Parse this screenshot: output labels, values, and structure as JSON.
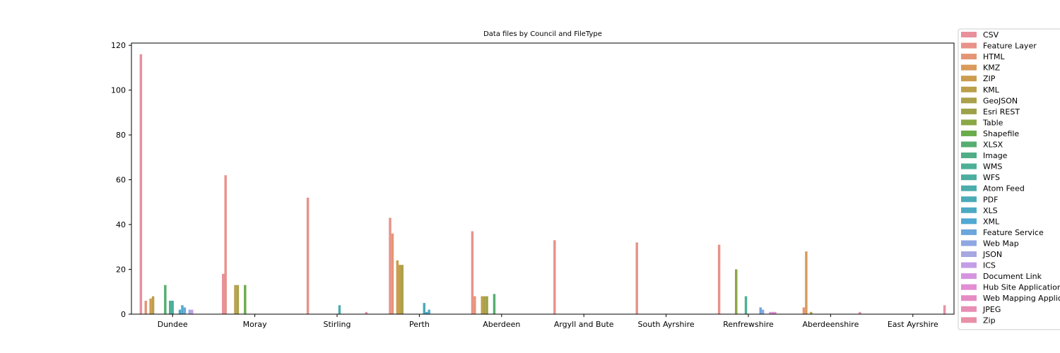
{
  "chart_data": {
    "type": "bar",
    "title": "Data files by Council and FileType",
    "xlabel": "",
    "ylabel": "",
    "ylim": [
      0,
      121
    ],
    "yticks": [
      0,
      20,
      40,
      60,
      80,
      100,
      120
    ],
    "legend_position": "right (outside plot, clipped)",
    "categories": [
      "Dundee",
      "Moray",
      "Stirling",
      "Perth",
      "Aberdeen",
      "Argyll and Bute",
      "South Ayrshire",
      "Renfrewshire",
      "Aberdeenshire",
      "East Ayrshire"
    ],
    "series": [
      {
        "name": "CSV",
        "color": "#e8909c",
        "values": [
          116,
          18,
          0,
          0,
          0,
          0,
          0,
          0,
          0,
          0
        ]
      },
      {
        "name": "Feature Layer",
        "color": "#e8928a",
        "values": [
          0,
          62,
          52,
          43,
          37,
          33,
          32,
          31,
          0,
          0
        ]
      },
      {
        "name": "HTML",
        "color": "#e49574",
        "values": [
          6,
          0,
          0,
          36,
          8,
          0,
          0,
          0,
          3,
          0
        ]
      },
      {
        "name": "KMZ",
        "color": "#d99a5a",
        "values": [
          0,
          0,
          0,
          0,
          0,
          0,
          0,
          0,
          28,
          0
        ]
      },
      {
        "name": "ZIP",
        "color": "#cc9c4e",
        "values": [
          7,
          0,
          0,
          24,
          0,
          0,
          0,
          0,
          0,
          0
        ]
      },
      {
        "name": "KML",
        "color": "#bb9f4b",
        "values": [
          8,
          13,
          0,
          22,
          8,
          0,
          0,
          0,
          1,
          0
        ]
      },
      {
        "name": "GeoJSON",
        "color": "#aaa14a",
        "values": [
          0,
          13,
          0,
          22,
          8,
          0,
          0,
          0,
          0,
          0
        ]
      },
      {
        "name": "Esri REST",
        "color": "#9da248",
        "values": [
          0,
          0,
          0,
          0,
          8,
          0,
          0,
          0,
          0,
          0
        ]
      },
      {
        "name": "Table",
        "color": "#8aa746",
        "values": [
          0,
          0,
          0,
          0,
          0,
          0,
          0,
          20,
          0,
          0
        ]
      },
      {
        "name": "Shapefile",
        "color": "#6aac4c",
        "values": [
          0,
          13,
          0,
          0,
          0,
          0,
          0,
          0,
          0,
          0
        ]
      },
      {
        "name": "XLSX",
        "color": "#55ae70",
        "values": [
          13,
          0,
          0,
          0,
          9,
          0,
          0,
          0,
          0,
          0
        ]
      },
      {
        "name": "Image",
        "color": "#4fae85",
        "values": [
          0,
          0,
          0,
          0,
          0,
          0,
          0,
          0,
          0,
          0
        ]
      },
      {
        "name": "WMS",
        "color": "#4caf96",
        "values": [
          6,
          0,
          0,
          0,
          0,
          0,
          0,
          8,
          0,
          0
        ]
      },
      {
        "name": "WFS",
        "color": "#4bae9f",
        "values": [
          6,
          0,
          0,
          0,
          0,
          0,
          0,
          0,
          0,
          0
        ]
      },
      {
        "name": "Atom Feed",
        "color": "#4aadab",
        "values": [
          0,
          0,
          4,
          0,
          0,
          0,
          0,
          0,
          0,
          0
        ]
      },
      {
        "name": "PDF",
        "color": "#4aabb7",
        "values": [
          0,
          0,
          0,
          5,
          0,
          0,
          0,
          0,
          0,
          0
        ]
      },
      {
        "name": "XLS",
        "color": "#4ca9c4",
        "values": [
          2,
          0,
          0,
          1,
          0,
          0,
          0,
          0,
          0,
          0
        ]
      },
      {
        "name": "XML",
        "color": "#51a8d2",
        "values": [
          4,
          0,
          0,
          2,
          0,
          0,
          0,
          0,
          0,
          0
        ]
      },
      {
        "name": "Feature Service",
        "color": "#6ba6dc",
        "values": [
          3,
          0,
          0,
          0,
          0,
          0,
          0,
          3,
          0,
          0
        ]
      },
      {
        "name": "Web Map",
        "color": "#8fa7e2",
        "values": [
          0,
          0,
          0,
          0,
          0,
          0,
          0,
          2,
          0,
          0
        ]
      },
      {
        "name": "JSON",
        "color": "#a7a7e2",
        "values": [
          2,
          0,
          0,
          0,
          0,
          0,
          0,
          0,
          0,
          0
        ]
      },
      {
        "name": "ICS",
        "color": "#c39ee6",
        "values": [
          2,
          0,
          0,
          0,
          0,
          0,
          0,
          0,
          0,
          0
        ]
      },
      {
        "name": "Document Link",
        "color": "#d694e0",
        "values": [
          0,
          0,
          0,
          0,
          0,
          0,
          0,
          1,
          0,
          0
        ]
      },
      {
        "name": "Hub Site Application",
        "color": "#e28dd4",
        "values": [
          0,
          0,
          0,
          0,
          0,
          0,
          0,
          1,
          0,
          0
        ]
      },
      {
        "name": "Web Mapping Application",
        "color": "#e68cc4",
        "values": [
          0,
          0,
          0,
          0,
          0,
          0,
          0,
          1,
          0,
          0
        ]
      },
      {
        "name": "JPEG",
        "color": "#e88eb4",
        "values": [
          0,
          0,
          1,
          0,
          0,
          0,
          0,
          0,
          1,
          0
        ]
      },
      {
        "name": "Zip",
        "color": "#e890a6",
        "values": [
          0,
          0,
          0,
          0,
          0,
          0,
          0,
          0,
          0,
          4
        ]
      }
    ]
  }
}
